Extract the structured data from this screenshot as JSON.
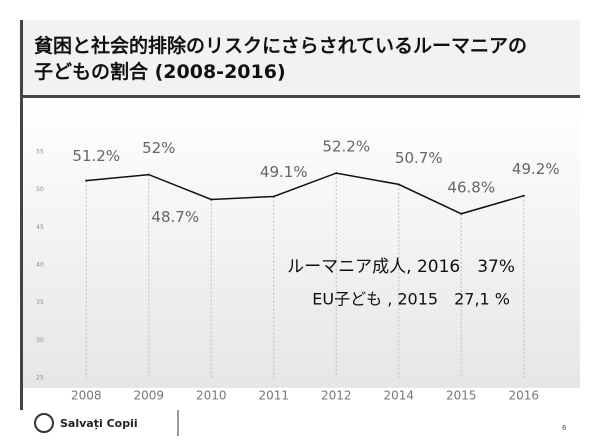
{
  "chart_data": {
    "type": "line",
    "title": "貧困と社会的排除のリスクにさらされているルーマニアの子どもの割合 (2008-2016)",
    "categories": [
      "2008",
      "2009",
      "2010",
      "2011",
      "2012",
      "2014",
      "2015",
      "2016"
    ],
    "values": [
      51.2,
      52,
      48.7,
      49.1,
      52.2,
      50.7,
      46.8,
      49.2
    ],
    "value_labels": [
      "51.2%",
      "52%",
      "48.7%",
      "49.1%",
      "52.2%",
      "50.7%",
      "46.8%",
      "49.2%"
    ],
    "color": "#111111",
    "ylim": [
      25,
      55
    ],
    "yticks": [
      25,
      30,
      35,
      40,
      45,
      50,
      55
    ],
    "annotations": [
      "ルーマニア成人, 2016　37%",
      "EU子ども , 2015　27,1 %"
    ]
  },
  "footer": {
    "logo": "Salvați Copii",
    "page": "6"
  }
}
